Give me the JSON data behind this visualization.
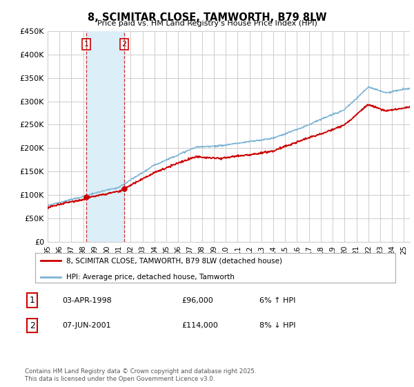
{
  "title": "8, SCIMITAR CLOSE, TAMWORTH, B79 8LW",
  "subtitle": "Price paid vs. HM Land Registry's House Price Index (HPI)",
  "ylabel_ticks": [
    "£0",
    "£50K",
    "£100K",
    "£150K",
    "£200K",
    "£250K",
    "£300K",
    "£350K",
    "£400K",
    "£450K"
  ],
  "ylim": [
    0,
    450000
  ],
  "xlim_start": 1995.0,
  "xlim_end": 2025.5,
  "legend_line1": "8, SCIMITAR CLOSE, TAMWORTH, B79 8LW (detached house)",
  "legend_line2": "HPI: Average price, detached house, Tamworth",
  "sale1_label": "1",
  "sale1_date": "03-APR-1998",
  "sale1_price": "£96,000",
  "sale1_hpi": "6% ↑ HPI",
  "sale2_label": "2",
  "sale2_date": "07-JUN-2001",
  "sale2_price": "£114,000",
  "sale2_hpi": "8% ↓ HPI",
  "footnote": "Contains HM Land Registry data © Crown copyright and database right 2025.\nThis data is licensed under the Open Government Licence v3.0.",
  "sale1_x": 1998.25,
  "sale2_x": 2001.44,
  "line_color_red": "#cc0000",
  "line_color_blue": "#7ab3d4",
  "shade_color": "#dceef8",
  "grid_color": "#cccccc",
  "bg_color": "#ffffff"
}
